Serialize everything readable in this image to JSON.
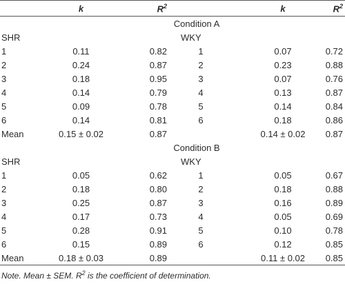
{
  "header": {
    "cells": [
      {
        "text": "k"
      },
      {
        "base": "R",
        "sup": "2"
      },
      {
        "text": "k"
      },
      {
        "base": "R",
        "sup": "2"
      }
    ]
  },
  "sections": [
    {
      "title": "Condition A",
      "groups": [
        "SHR",
        "WKY"
      ],
      "rows": [
        {
          "left": [
            "1",
            "0.11",
            "0.82"
          ],
          "right": [
            "1",
            "0.07",
            "0.72"
          ]
        },
        {
          "left": [
            "2",
            "0.24",
            "0.87"
          ],
          "right": [
            "2",
            "0.23",
            "0.88"
          ]
        },
        {
          "left": [
            "3",
            "0.18",
            "0.95"
          ],
          "right": [
            "3",
            "0.07",
            "0.76"
          ]
        },
        {
          "left": [
            "4",
            "0.14",
            "0.79"
          ],
          "right": [
            "4",
            "0.13",
            "0.87"
          ]
        },
        {
          "left": [
            "5",
            "0.09",
            "0.78"
          ],
          "right": [
            "5",
            "0.14",
            "0.84"
          ]
        },
        {
          "left": [
            "6",
            "0.14",
            "0.81"
          ],
          "right": [
            "6",
            "0.18",
            "0.86"
          ]
        }
      ],
      "mean": {
        "left": [
          "Mean",
          "0.15 ± 0.02",
          "0.87"
        ],
        "right": [
          "0.14 ± 0.02",
          "0.87"
        ]
      }
    },
    {
      "title": "Condition B",
      "groups": [
        "SHR",
        "WKY"
      ],
      "rows": [
        {
          "left": [
            "1",
            "0.05",
            "0.62"
          ],
          "right": [
            "1",
            "0.05",
            "0.67"
          ]
        },
        {
          "left": [
            "2",
            "0.18",
            "0.80"
          ],
          "right": [
            "2",
            "0.18",
            "0.88"
          ]
        },
        {
          "left": [
            "3",
            "0.25",
            "0.87"
          ],
          "right": [
            "3",
            "0.16",
            "0.89"
          ]
        },
        {
          "left": [
            "4",
            "0.17",
            "0.73"
          ],
          "right": [
            "4",
            "0.05",
            "0.69"
          ]
        },
        {
          "left": [
            "5",
            "0.28",
            "0.91"
          ],
          "right": [
            "5",
            "0.10",
            "0.78"
          ]
        },
        {
          "left": [
            "6",
            "0.15",
            "0.89"
          ],
          "right": [
            "6",
            "0.12",
            "0.85"
          ]
        }
      ],
      "mean": {
        "left": [
          "Mean",
          "0.18 ± 0.03",
          "0.89"
        ],
        "right": [
          "0.11 ± 0.02",
          "0.85"
        ]
      }
    }
  ],
  "note": {
    "parts": [
      "Note. Mean ± SEM. ",
      "R",
      "2",
      " is the coefficient of determination."
    ]
  }
}
